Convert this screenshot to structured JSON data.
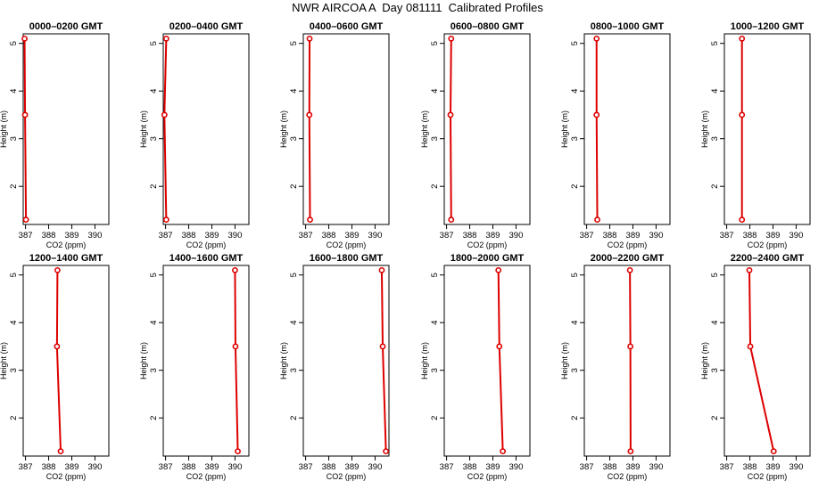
{
  "title": "NWR AIRCOA A  Day 081111  Calibrated Profiles",
  "chart_data": {
    "type": "line",
    "xlabel": "CO2 (ppm)",
    "ylabel": "Height (m)",
    "xlim": [
      386.9,
      390.6
    ],
    "ylim": [
      1.2,
      5.2
    ],
    "xticks": [
      387,
      388,
      389,
      390
    ],
    "yticks": [
      2,
      3,
      4,
      5
    ],
    "grid": false,
    "line_color": "#dd0000",
    "marker": "open-circle",
    "heights": [
      5.1,
      3.5,
      1.3
    ],
    "panels": [
      {
        "title": "0000–0200 GMT",
        "co2": [
          386.96,
          386.98,
          387.02
        ]
      },
      {
        "title": "0200–0400 GMT",
        "co2": [
          387.03,
          386.95,
          387.03
        ]
      },
      {
        "title": "0400–0600 GMT",
        "co2": [
          387.17,
          387.16,
          387.19
        ]
      },
      {
        "title": "0600–0800 GMT",
        "co2": [
          387.2,
          387.17,
          387.2
        ]
      },
      {
        "title": "0800–1000 GMT",
        "co2": [
          387.43,
          387.43,
          387.46
        ]
      },
      {
        "title": "1000–1200 GMT",
        "co2": [
          387.66,
          387.66,
          387.66
        ]
      },
      {
        "title": "1200–1400 GMT",
        "co2": [
          388.38,
          388.36,
          388.52
        ]
      },
      {
        "title": "1400–1600 GMT",
        "co2": [
          390.0,
          390.02,
          390.12
        ]
      },
      {
        "title": "1600–1800 GMT",
        "co2": [
          390.29,
          390.33,
          390.47
        ]
      },
      {
        "title": "1800–2000 GMT",
        "co2": [
          389.24,
          389.28,
          389.43
        ]
      },
      {
        "title": "2000–2200 GMT",
        "co2": [
          388.87,
          388.89,
          388.9
        ]
      },
      {
        "title": "2200–2400 GMT",
        "co2": [
          387.98,
          388.02,
          389.03
        ]
      }
    ]
  }
}
